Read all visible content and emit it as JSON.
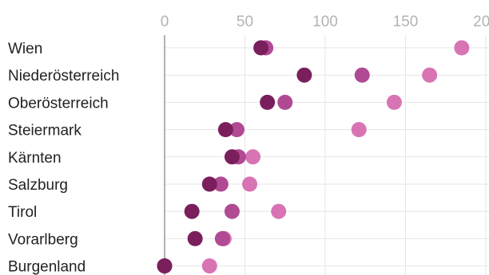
{
  "chart_data": {
    "type": "scatter",
    "xlim": [
      0,
      200
    ],
    "x_ticks": [
      "0",
      "50",
      "100",
      "150",
      "200"
    ],
    "grid": true,
    "categories": [
      "Wien",
      "Niederösterreich",
      "Oberösterreich",
      "Steiermark",
      "Kärnten",
      "Salzburg",
      "Tirol",
      "Vorarlberg",
      "Burgenland"
    ],
    "series": [
      {
        "color": "#7a1f5c",
        "values": [
          60,
          87,
          64,
          38,
          42,
          28,
          17,
          19,
          0
        ]
      },
      {
        "color": "#b04a93",
        "values": [
          63,
          123,
          75,
          45,
          46,
          35,
          42,
          36,
          0
        ]
      },
      {
        "color": "#d874b4",
        "values": [
          185,
          165,
          143,
          121,
          55,
          53,
          71,
          37,
          28
        ]
      }
    ]
  }
}
